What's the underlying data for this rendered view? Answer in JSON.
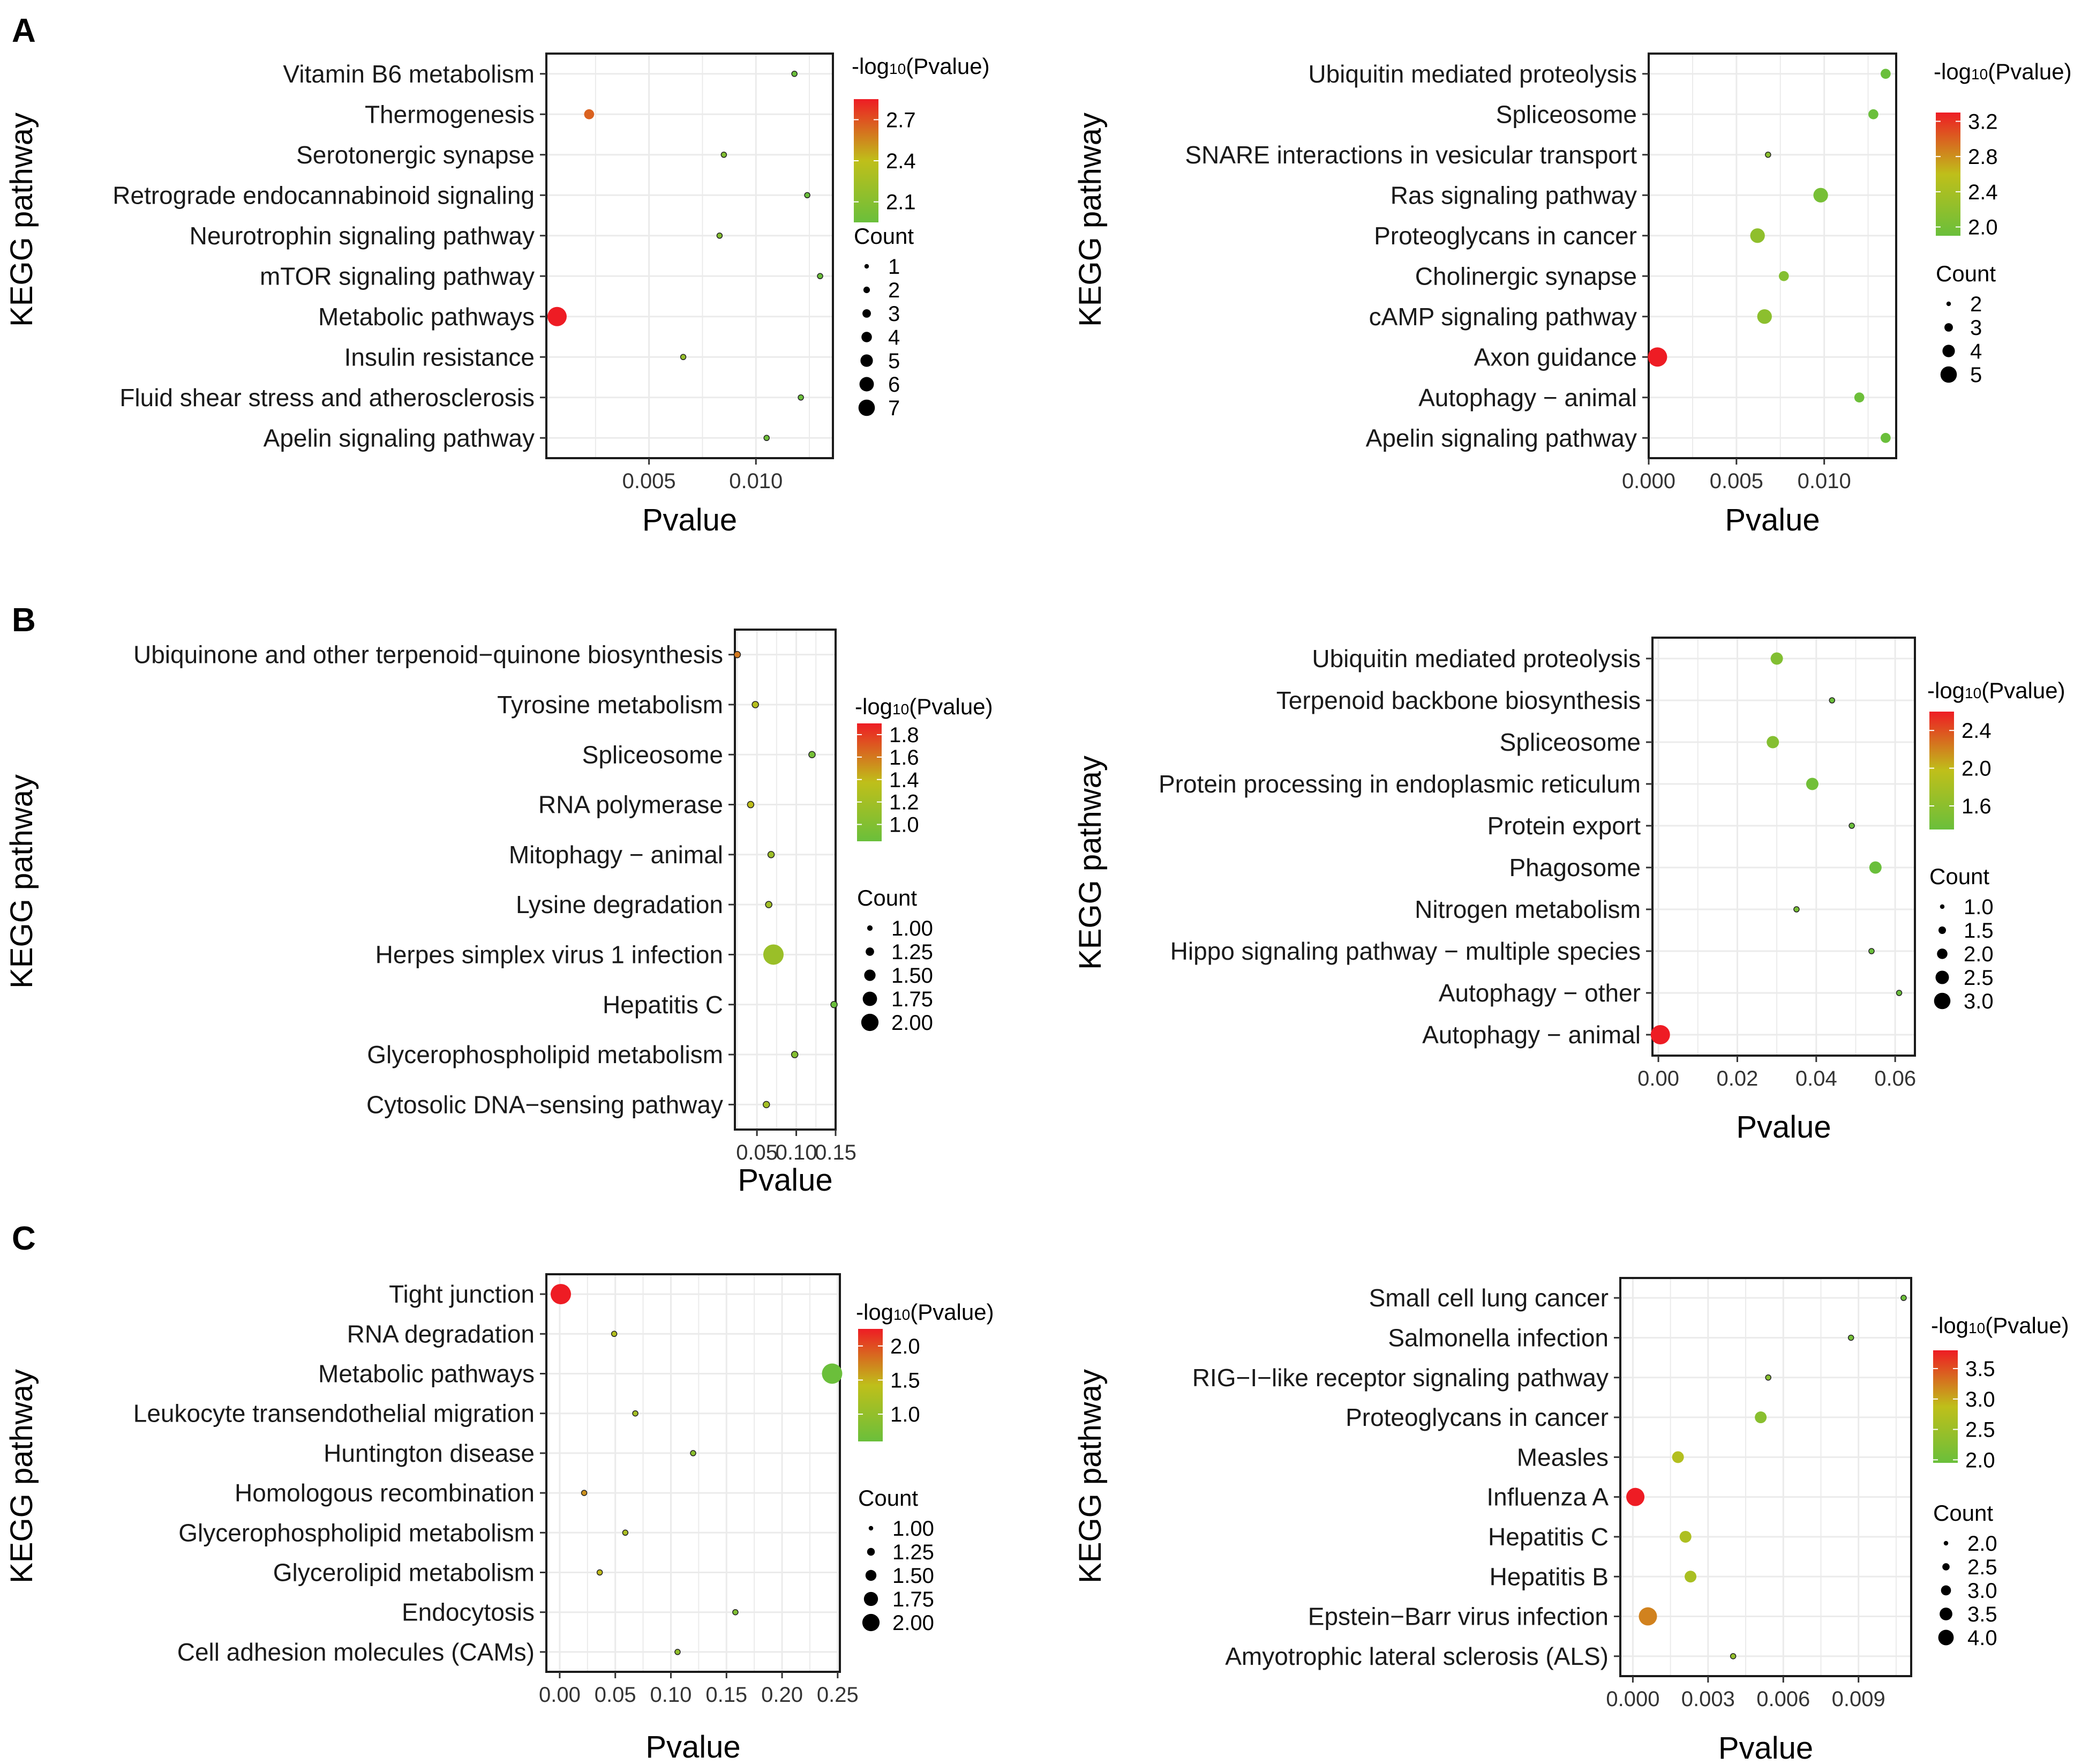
{
  "panel_labels": [
    "A",
    "B",
    "C"
  ],
  "common": {
    "y_axis_title": "KEGG pathway",
    "x_axis_title": "Pvalue",
    "color_legend_prefix": "-log",
    "color_legend_sub": "10",
    "color_legend_suffix": "(Pvalue)",
    "size_legend_title": "Count",
    "color_low": "#6abf3b",
    "color_mid": "#bfbf1a",
    "color_high": "#ee1c24",
    "grid_color": "#ebebeb"
  },
  "chart_data": [
    {
      "type": "scatter",
      "panel": "A",
      "title": "",
      "xlabel": "Pvalue",
      "ylabel": "KEGG pathway",
      "xlim": [
        0.0002,
        0.0136
      ],
      "xticks": [
        0.005,
        0.01
      ],
      "xtick_labels": [
        "0.005",
        "0.010"
      ],
      "categories": [
        "Vitamin B6 metabolism",
        "Thermogenesis",
        "Serotonergic synapse",
        "Retrograde endocannabinoid signaling",
        "Neurotrophin signaling pathway",
        "mTOR signaling pathway",
        "Metabolic pathways",
        "Insulin resistance",
        "Fluid shear stress and atherosclerosis",
        "Apelin signaling pathway"
      ],
      "x": [
        0.0118,
        0.0022,
        0.0085,
        0.0124,
        0.0083,
        0.013,
        0.0007,
        0.0066,
        0.0121,
        0.0105
      ],
      "count": [
        1,
        3,
        1,
        1,
        1,
        1,
        7,
        1,
        1,
        1
      ],
      "color_range": [
        1.95,
        2.85
      ],
      "color_ticks": [
        "2.7",
        "2.4",
        "2.1"
      ],
      "color_tick_values": [
        2.7,
        2.4,
        2.1
      ],
      "size_legend": [
        "1",
        "2",
        "3",
        "4",
        "5",
        "6",
        "7"
      ],
      "size_range": [
        1,
        7
      ]
    },
    {
      "type": "scatter",
      "panel": "A",
      "title": "",
      "xlabel": "Pvalue",
      "ylabel": "KEGG pathway",
      "xlim": [
        0,
        0.0141
      ],
      "xticks": [
        0,
        0.005,
        0.01
      ],
      "xtick_labels": [
        "0.000",
        "0.005",
        "0.010"
      ],
      "categories": [
        "Ubiquitin mediated proteolysis",
        "Spliceosome",
        "SNARE interactions in vesicular transport",
        "Ras signaling pathway",
        "Proteoglycans in cancer",
        "Cholinergic synapse",
        "cAMP signaling pathway",
        "Axon guidance",
        "Autophagy − animal",
        "Apelin signaling pathway"
      ],
      "x": [
        0.0135,
        0.0128,
        0.0068,
        0.0098,
        0.0062,
        0.0077,
        0.0066,
        0.0005,
        0.012,
        0.0135
      ],
      "count": [
        3,
        3,
        2,
        4,
        4,
        3,
        4,
        5,
        3,
        3
      ],
      "color_range": [
        1.9,
        3.3
      ],
      "color_ticks": [
        "3.2",
        "2.8",
        "2.4",
        "2.0"
      ],
      "color_tick_values": [
        3.2,
        2.8,
        2.4,
        2.0
      ],
      "size_legend": [
        "2",
        "3",
        "4",
        "5"
      ],
      "size_range": [
        2,
        5
      ]
    },
    {
      "type": "scatter",
      "panel": "B",
      "title": "",
      "xlabel": "Pvalue",
      "ylabel": "KEGG pathway",
      "xlim": [
        0.022,
        0.15
      ],
      "xticks": [
        0.05,
        0.1,
        0.15
      ],
      "xtick_labels": [
        "0.05",
        "0.10",
        "0.15"
      ],
      "categories": [
        "Ubiquinone and other terpenoid−quinone biosynthesis",
        "Tyrosine metabolism",
        "Spliceosome",
        "RNA polymerase",
        "Mitophagy − animal",
        "Lysine degradation",
        "Herpes simplex virus 1 infection",
        "Hepatitis C",
        "Glycerophospholipid metabolism",
        "Cytosolic DNA−sensing pathway"
      ],
      "x": [
        0.025,
        0.048,
        0.12,
        0.042,
        0.068,
        0.065,
        0.071,
        0.148,
        0.098,
        0.062
      ],
      "count": [
        1,
        1,
        1,
        1,
        1,
        1,
        2,
        1,
        1,
        1
      ],
      "color_range": [
        0.85,
        1.9
      ],
      "color_ticks": [
        "1.8",
        "1.6",
        "1.4",
        "1.2",
        "1.0"
      ],
      "color_tick_values": [
        1.8,
        1.6,
        1.4,
        1.2,
        1.0
      ],
      "size_legend": [
        "1.00",
        "1.25",
        "1.50",
        "1.75",
        "2.00"
      ],
      "size_range": [
        1,
        2
      ]
    },
    {
      "type": "scatter",
      "panel": "B",
      "title": "",
      "xlabel": "Pvalue",
      "ylabel": "KEGG pathway",
      "xlim": [
        -0.0015,
        0.065
      ],
      "xticks": [
        0,
        0.02,
        0.04,
        0.06
      ],
      "xtick_labels": [
        "0.00",
        "0.02",
        "0.04",
        "0.06"
      ],
      "categories": [
        "Ubiquitin mediated proteolysis",
        "Terpenoid backbone biosynthesis",
        "Spliceosome",
        "Protein processing in endoplasmic reticulum",
        "Protein export",
        "Phagosome",
        "Nitrogen metabolism",
        "Hippo signaling pathway − multiple species",
        "Autophagy − other",
        "Autophagy − animal"
      ],
      "x": [
        0.03,
        0.044,
        0.029,
        0.039,
        0.049,
        0.055,
        0.035,
        0.054,
        0.061,
        0.0005
      ],
      "count": [
        2,
        1,
        2,
        2,
        1,
        2,
        1,
        1,
        1,
        3
      ],
      "color_range": [
        1.35,
        2.6
      ],
      "color_ticks": [
        "2.4",
        "2.0",
        "1.6"
      ],
      "color_tick_values": [
        2.4,
        2.0,
        1.6
      ],
      "size_legend": [
        "1.0",
        "1.5",
        "2.0",
        "2.5",
        "3.0"
      ],
      "size_range": [
        1,
        3
      ]
    },
    {
      "type": "scatter",
      "panel": "C",
      "title": "",
      "xlabel": "Pvalue",
      "ylabel": "KEGG pathway",
      "xlim": [
        -0.012,
        0.252
      ],
      "xticks": [
        0,
        0.05,
        0.1,
        0.15,
        0.2,
        0.25
      ],
      "xtick_labels": [
        "0.00",
        "0.05",
        "0.10",
        "0.15",
        "0.20",
        "0.25"
      ],
      "categories": [
        "Tight junction",
        "RNA degradation",
        "Metabolic pathways",
        "Leukocyte transendothelial migration",
        "Huntington disease",
        "Homologous recombination",
        "Glycerophospholipid metabolism",
        "Glycerolipid metabolism",
        "Endocytosis",
        "Cell adhesion molecules (CAMs)"
      ],
      "x": [
        0.001,
        0.049,
        0.245,
        0.068,
        0.12,
        0.022,
        0.059,
        0.036,
        0.158,
        0.106
      ],
      "count": [
        2,
        1,
        2,
        1,
        1,
        1,
        1,
        1,
        1,
        1
      ],
      "color_range": [
        0.6,
        2.25
      ],
      "color_ticks": [
        "2.0",
        "1.5",
        "1.0"
      ],
      "color_tick_values": [
        2.0,
        1.5,
        1.0
      ],
      "size_legend": [
        "1.00",
        "1.25",
        "1.50",
        "1.75",
        "2.00"
      ],
      "size_range": [
        1,
        2
      ]
    },
    {
      "type": "scatter",
      "panel": "C",
      "title": "",
      "xlabel": "Pvalue",
      "ylabel": "KEGG pathway",
      "xlim": [
        -0.0005,
        0.0111
      ],
      "xticks": [
        0,
        0.003,
        0.006,
        0.009
      ],
      "xtick_labels": [
        "0.000",
        "0.003",
        "0.006",
        "0.009"
      ],
      "categories": [
        "Small cell lung cancer",
        "Salmonella infection",
        "RIG−I−like receptor signaling pathway",
        "Proteoglycans in cancer",
        "Measles",
        "Influenza A",
        "Hepatitis C",
        "Hepatitis B",
        "Epstein−Barr virus infection",
        "Amyotrophic lateral sclerosis (ALS)"
      ],
      "x": [
        0.0108,
        0.0087,
        0.0054,
        0.0051,
        0.0018,
        0.0001,
        0.0021,
        0.0023,
        0.0006,
        0.004
      ],
      "count": [
        2,
        2,
        2,
        3,
        3,
        4,
        3,
        3,
        4,
        2
      ],
      "color_range": [
        1.95,
        3.8
      ],
      "color_ticks": [
        "3.5",
        "3.0",
        "2.5",
        "2.0"
      ],
      "color_tick_values": [
        3.5,
        3.0,
        2.5,
        2.0
      ],
      "size_legend": [
        "2.0",
        "2.5",
        "3.0",
        "3.5",
        "4.0"
      ],
      "size_range": [
        2,
        4
      ]
    }
  ]
}
